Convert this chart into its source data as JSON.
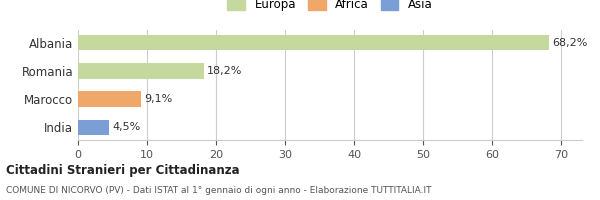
{
  "categories": [
    "Albania",
    "Romania",
    "Marocco",
    "India"
  ],
  "values": [
    68.2,
    18.2,
    9.1,
    4.5
  ],
  "labels": [
    "68,2%",
    "18,2%",
    "9,1%",
    "4,5%"
  ],
  "bar_colors": [
    "#c5d89d",
    "#c5d89d",
    "#f0a868",
    "#7b9fd4"
  ],
  "legend": [
    {
      "label": "Europa",
      "color": "#c5d89d"
    },
    {
      "label": "Africa",
      "color": "#f0a868"
    },
    {
      "label": "Asia",
      "color": "#7b9fd4"
    }
  ],
  "xlim": [
    0,
    73
  ],
  "xticks": [
    0,
    10,
    20,
    30,
    40,
    50,
    60,
    70
  ],
  "title_bold": "Cittadini Stranieri per Cittadinanza",
  "subtitle": "COMUNE DI NICORVO (PV) - Dati ISTAT al 1° gennaio di ogni anno - Elaborazione TUTTITALIA.IT",
  "background_color": "#ffffff",
  "grid_color": "#cccccc"
}
